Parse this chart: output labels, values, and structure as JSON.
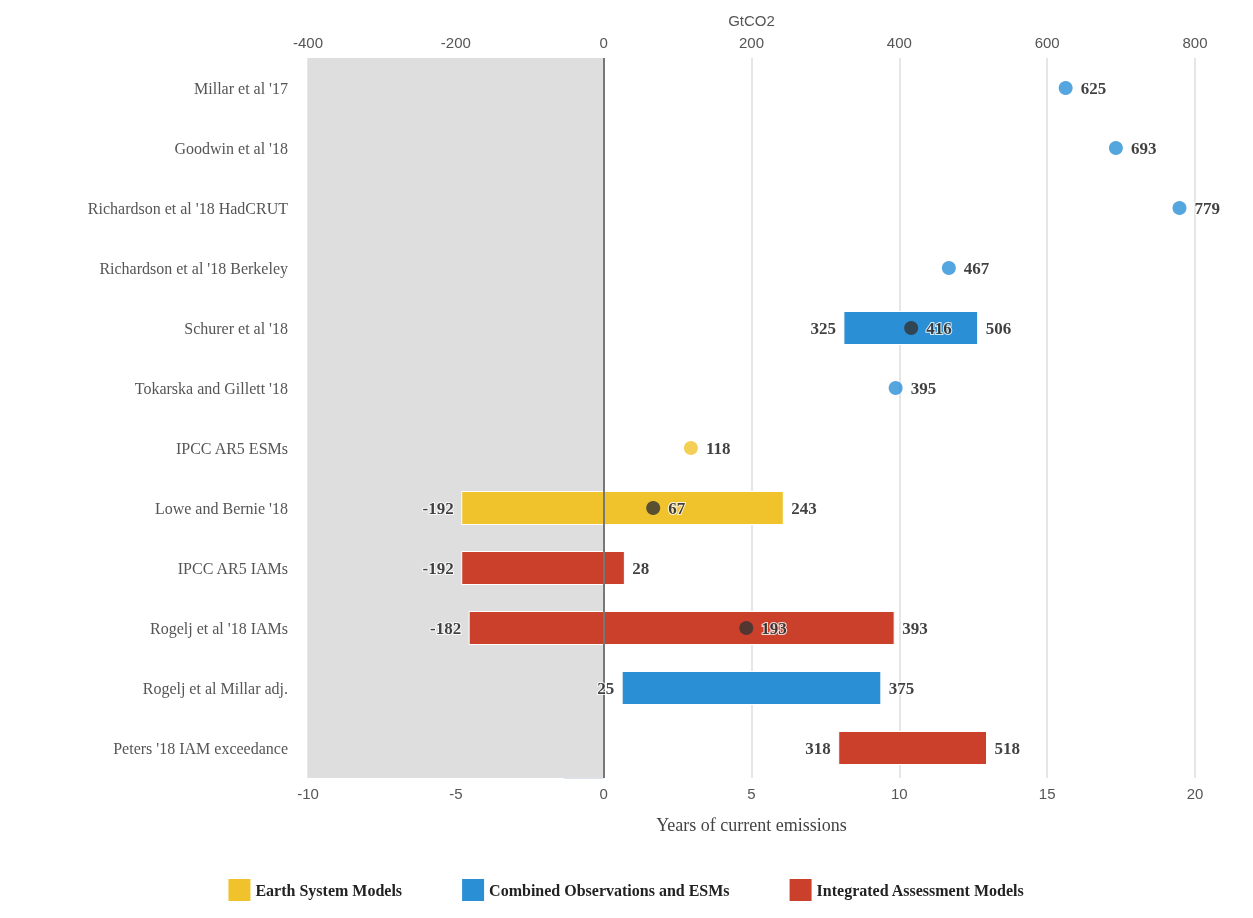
{
  "chart_data": {
    "type": "bar",
    "orientation": "horizontal",
    "xlabel": "Years of current emissions",
    "x2label": "GtCO2",
    "categories": [
      "Millar et al '17",
      "Goodwin et al '18",
      "Richardson et al '18 HadCRUT",
      "Richardson et al '18 Berkeley",
      "Schurer et al '18",
      "Tokarska and Gillett '18",
      "IPCC AR5 ESMs",
      "Lowe and Bernie '18",
      "IPCC AR5 IAMs",
      "Rogelj et al '18 IAMs",
      "Rogelj et al Millar adj.",
      "Peters '18 IAM exceedance"
    ],
    "xlim": [
      -10,
      20
    ],
    "xticks": [
      -10,
      -5,
      0,
      5,
      10,
      15,
      20
    ],
    "x2lim": [
      -400,
      800
    ],
    "x2ticks": [
      -400,
      -200,
      0,
      200,
      400,
      600,
      800
    ],
    "grid": "x",
    "legend": "bottom",
    "series": [
      {
        "name": "Earth System Models",
        "type": "bar",
        "axis": "x2",
        "color": "#f0c32c",
        "base": [
          null,
          null,
          null,
          null,
          null,
          null,
          null,
          -192,
          null,
          null,
          null,
          null
        ],
        "values": [
          null,
          null,
          null,
          null,
          null,
          null,
          null,
          435,
          null,
          null,
          null,
          null
        ]
      },
      {
        "name": "Combined Observations and ESMs",
        "type": "bar",
        "axis": "x2",
        "color": "#2b8fd6",
        "base": [
          null,
          null,
          null,
          null,
          325,
          null,
          null,
          null,
          null,
          null,
          25,
          null
        ],
        "values": [
          null,
          null,
          null,
          null,
          181,
          null,
          null,
          null,
          null,
          null,
          350,
          null
        ]
      },
      {
        "name": "Integrated Assessment Models",
        "type": "bar",
        "axis": "x2",
        "color": "#cb402a",
        "base": [
          null,
          null,
          null,
          null,
          null,
          null,
          null,
          null,
          -192,
          -182,
          null,
          318
        ],
        "values": [
          null,
          null,
          null,
          null,
          null,
          null,
          null,
          null,
          220,
          575,
          null,
          200
        ]
      },
      {
        "type": "scatter",
        "axis": "x2",
        "color": "#2b8fd6",
        "data_labels": true,
        "values": [
          625,
          693,
          779,
          467,
          null,
          395,
          null,
          null,
          null,
          null,
          null,
          null
        ]
      },
      {
        "type": "scatter",
        "axis": "x2",
        "color": "#f0c32c",
        "data_labels": true,
        "values": [
          null,
          null,
          null,
          null,
          null,
          null,
          118,
          null,
          null,
          null,
          null,
          null
        ]
      },
      {
        "type": "scatter",
        "axis": "x2",
        "color": "#333333",
        "data_labels": true,
        "values": [
          null,
          null,
          null,
          null,
          416,
          null,
          null,
          67,
          null,
          193,
          null,
          null
        ]
      }
    ],
    "bands": [
      {
        "axis": "x",
        "from": -10,
        "to": 0,
        "color": "#dedede"
      }
    ],
    "ref_lines": [
      {
        "axis": "x",
        "value": 0,
        "color": "#777777"
      }
    ],
    "annotations": [
      "325",
      "506",
      "-192",
      "243",
      "-192",
      "28",
      "-182",
      "393",
      "25",
      "375",
      "318",
      "518"
    ]
  }
}
